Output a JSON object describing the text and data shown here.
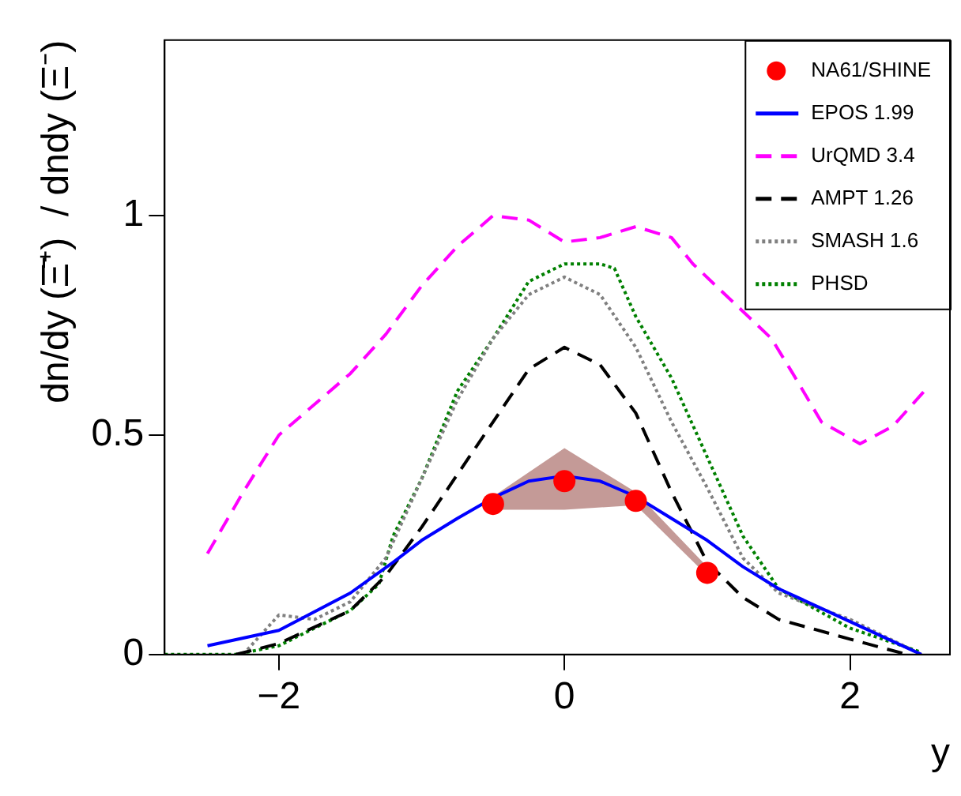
{
  "chart_data": {
    "type": "line",
    "xlabel": "y",
    "ylabel": "dn/dy (Ξ̄⁺)  / dndy (Ξ⁻)",
    "xlim": [
      -2.8,
      2.7
    ],
    "ylim": [
      0,
      1.4
    ],
    "xticks": [
      {
        "value": -2,
        "label": "−2"
      },
      0,
      2
    ],
    "yticks": [
      0,
      0.5,
      1
    ],
    "grid": false,
    "legend": "top right",
    "series": [
      {
        "name": "NA61/SHINE",
        "type": "scatter",
        "marker": "circle",
        "color": "#ff0000",
        "x": [
          -0.5,
          0,
          0.5,
          1
        ],
        "values": [
          0.343,
          0.395,
          0.35,
          0.186
        ],
        "lower": [
          0.33,
          0.33,
          0.34,
          0.18
        ],
        "upper": [
          0.36,
          0.47,
          0.37,
          0.2
        ]
      },
      {
        "name": "EPOS 1.99",
        "type": "line",
        "line_style": "solid",
        "color": "#0000ff",
        "x": [
          -2.5,
          -2,
          -1.5,
          -1.2,
          -1,
          -0.75,
          -0.5,
          -0.25,
          0,
          0.25,
          0.5,
          0.75,
          1,
          1.25,
          1.5,
          2,
          2.5
        ],
        "values": [
          0.02,
          0.055,
          0.14,
          0.21,
          0.26,
          0.31,
          0.357,
          0.395,
          0.407,
          0.395,
          0.36,
          0.31,
          0.26,
          0.2,
          0.15,
          0.075,
          0.0
        ]
      },
      {
        "name": "UrQMD 3.4",
        "type": "line",
        "line_style": "dashed",
        "color": "#ff00ff",
        "x": [
          -2.5,
          -2.25,
          -2,
          -1.75,
          -1.5,
          -1.25,
          -1,
          -0.75,
          -0.5,
          -0.25,
          0,
          0.25,
          0.5,
          0.75,
          0.9,
          1.45,
          1.6,
          1.8,
          2.07,
          2.3,
          2.52
        ],
        "values": [
          0.23,
          0.37,
          0.5,
          0.57,
          0.64,
          0.73,
          0.84,
          0.93,
          1.0,
          0.99,
          0.94,
          0.95,
          0.975,
          0.95,
          0.89,
          0.72,
          0.64,
          0.53,
          0.48,
          0.52,
          0.6
        ]
      },
      {
        "name": "AMPT 1.26",
        "type": "line",
        "line_style": "dashed",
        "color": "#000000",
        "x": [
          -2.3,
          -2,
          -1.5,
          -1.25,
          -1,
          -0.75,
          -0.5,
          -0.25,
          0,
          0.25,
          0.5,
          0.75,
          1,
          1.25,
          1.5,
          2,
          2.4
        ],
        "values": [
          0,
          0.025,
          0.1,
          0.18,
          0.29,
          0.41,
          0.53,
          0.65,
          0.7,
          0.66,
          0.55,
          0.37,
          0.21,
          0.13,
          0.08,
          0.035,
          0
        ]
      },
      {
        "name": "SMASH 1.6",
        "type": "line",
        "line_style": "dotted",
        "color": "#808080",
        "x": [
          -2.25,
          -2,
          -1.75,
          -1.5,
          -1.25,
          -1,
          -0.75,
          -0.5,
          -0.25,
          0,
          0.25,
          0.5,
          0.75,
          1,
          1.25,
          1.5,
          2,
          2.5
        ],
        "values": [
          0,
          0.09,
          0.08,
          0.12,
          0.22,
          0.4,
          0.58,
          0.72,
          0.82,
          0.86,
          0.82,
          0.7,
          0.53,
          0.38,
          0.22,
          0.14,
          0.08,
          0
        ]
      },
      {
        "name": "PHSD",
        "type": "line",
        "line_style": "dotted",
        "color": "#008000",
        "x": [
          -2.8,
          -2.3,
          -2,
          -1.5,
          -1.3,
          -1.2,
          -1,
          -0.75,
          -0.5,
          -0.25,
          0,
          0.25,
          0.35,
          0.5,
          0.75,
          1,
          1.25,
          1.5,
          2,
          2.5
        ],
        "values": [
          0,
          0,
          0.02,
          0.1,
          0.16,
          0.27,
          0.4,
          0.6,
          0.72,
          0.85,
          0.89,
          0.89,
          0.88,
          0.77,
          0.63,
          0.45,
          0.27,
          0.15,
          0.06,
          0.005
        ]
      }
    ]
  }
}
